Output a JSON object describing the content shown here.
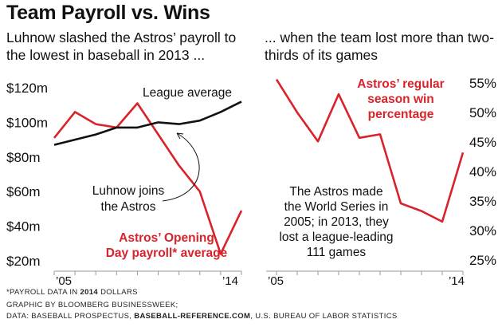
{
  "title": "Team Payroll vs. Wins",
  "subtitle_left": "Luhnow slashed the Astros’ payroll to the lowest in baseball in 2013 ...",
  "subtitle_right": "... when the team lost more than two-thirds of its games",
  "colors": {
    "red": "#d9232a",
    "black": "#111111",
    "axis": "#999999"
  },
  "chart_data": [
    {
      "type": "line",
      "title": "Payroll",
      "xlim": [
        2005,
        2014
      ],
      "ylim": [
        20,
        120
      ],
      "ytick_values": [
        20,
        40,
        60,
        80,
        100,
        120
      ],
      "ytick_labels": [
        "$20m",
        "$40m",
        "$60m",
        "$80m",
        "$100m",
        "$120m"
      ],
      "xtick_labels": [
        "’05",
        "’14"
      ],
      "series": [
        {
          "name": "Astros’ Opening Day payroll* average",
          "color": "#d9232a",
          "x": [
            2005,
            2006,
            2007,
            2008,
            2009,
            2010,
            2011,
            2012,
            2013,
            2014
          ],
          "y": [
            91,
            106,
            99,
            97,
            111,
            93,
            75,
            60,
            24,
            49
          ]
        },
        {
          "name": "League average",
          "color": "#111111",
          "x": [
            2005,
            2006,
            2007,
            2008,
            2009,
            2010,
            2011,
            2012,
            2013,
            2014
          ],
          "y": [
            87,
            90,
            93,
            97,
            97,
            100,
            99,
            101,
            106,
            112
          ]
        }
      ],
      "annotations": {
        "league": "League average",
        "luhnow": [
          "Luhnow joins",
          "the Astros"
        ],
        "astros": [
          "Astros’ Opening",
          "Day payroll* average"
        ]
      }
    },
    {
      "type": "line",
      "title": "Astros’ regular season win percentage",
      "xlim": [
        2005,
        2014
      ],
      "ylim": [
        25,
        55
      ],
      "ytick_values": [
        25,
        30,
        35,
        40,
        45,
        50,
        55
      ],
      "ytick_labels": [
        "25%",
        "30%",
        "35%",
        "40%",
        "45%",
        "50%",
        "55%"
      ],
      "xtick_labels": [
        "’05",
        "’14"
      ],
      "series": [
        {
          "name": "Astros’ regular season win percentage",
          "color": "#d9232a",
          "x": [
            2005,
            2006,
            2007,
            2008,
            2009,
            2010,
            2011,
            2012,
            2013,
            2014
          ],
          "y": [
            55.6,
            50.0,
            45.1,
            53.1,
            45.7,
            46.3,
            34.6,
            33.3,
            31.5,
            43.2
          ]
        }
      ],
      "annotations": {
        "label": [
          "Astros’ regular",
          "season win",
          "percentage"
        ],
        "note": [
          "The Astros made",
          "the World Series in",
          "2005; in 2013, they",
          "lost a league-leading",
          "111 games"
        ]
      }
    }
  ],
  "footnote": {
    "star_prefix": "*PAYROLL DATA IN ",
    "star_bold": "2014",
    "star_suffix": " DOLLARS",
    "credit": "GRAPHIC BY BLOOMBERG BUSINESSWEEK;",
    "data_prefix": "DATA: BASEBALL PROSPECTUS, ",
    "data_bold": "BASEBALL-REFERENCE.COM",
    "data_suffix": ", U.S. BUREAU OF LABOR STATISTICS"
  }
}
